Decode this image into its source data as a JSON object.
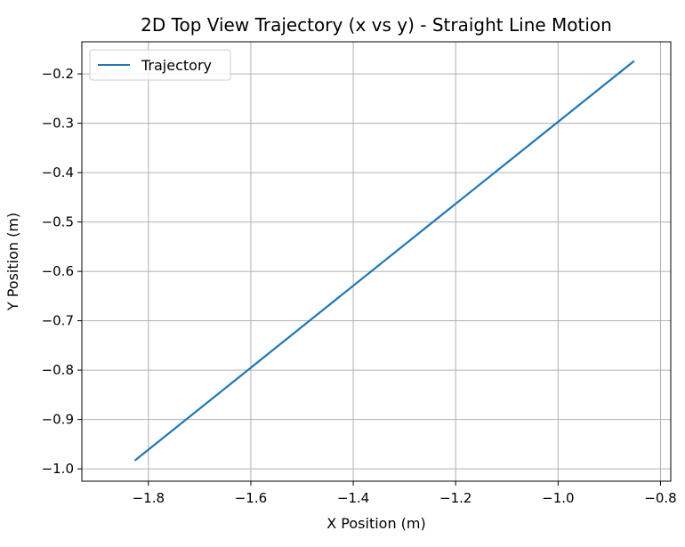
{
  "chart_data": {
    "type": "line",
    "title": "2D Top View Trajectory (x vs y) - Straight Line Motion",
    "xlabel": "X Position (m)",
    "ylabel": "Y Position (m)",
    "xlim": [
      -1.93,
      -0.78
    ],
    "ylim": [
      -1.025,
      -0.135
    ],
    "xticks": [
      -1.8,
      -1.6,
      -1.4,
      -1.2,
      -1.0,
      -0.8
    ],
    "xtick_labels": [
      "−1.8",
      "−1.6",
      "−1.4",
      "−1.2",
      "−1.0",
      "−0.8"
    ],
    "yticks": [
      -1.0,
      -0.9,
      -0.8,
      -0.7,
      -0.6,
      -0.5,
      -0.4,
      -0.3,
      -0.2
    ],
    "ytick_labels": [
      "−1.0",
      "−0.9",
      "−0.8",
      "−0.7",
      "−0.6",
      "−0.5",
      "−0.4",
      "−0.3",
      "−0.2"
    ],
    "grid": true,
    "legend_position": "top-left",
    "series": [
      {
        "name": "Trajectory",
        "color": "#1f77b4",
        "x": [
          -1.825,
          -0.853
        ],
        "y": [
          -0.982,
          -0.175
        ]
      }
    ]
  }
}
